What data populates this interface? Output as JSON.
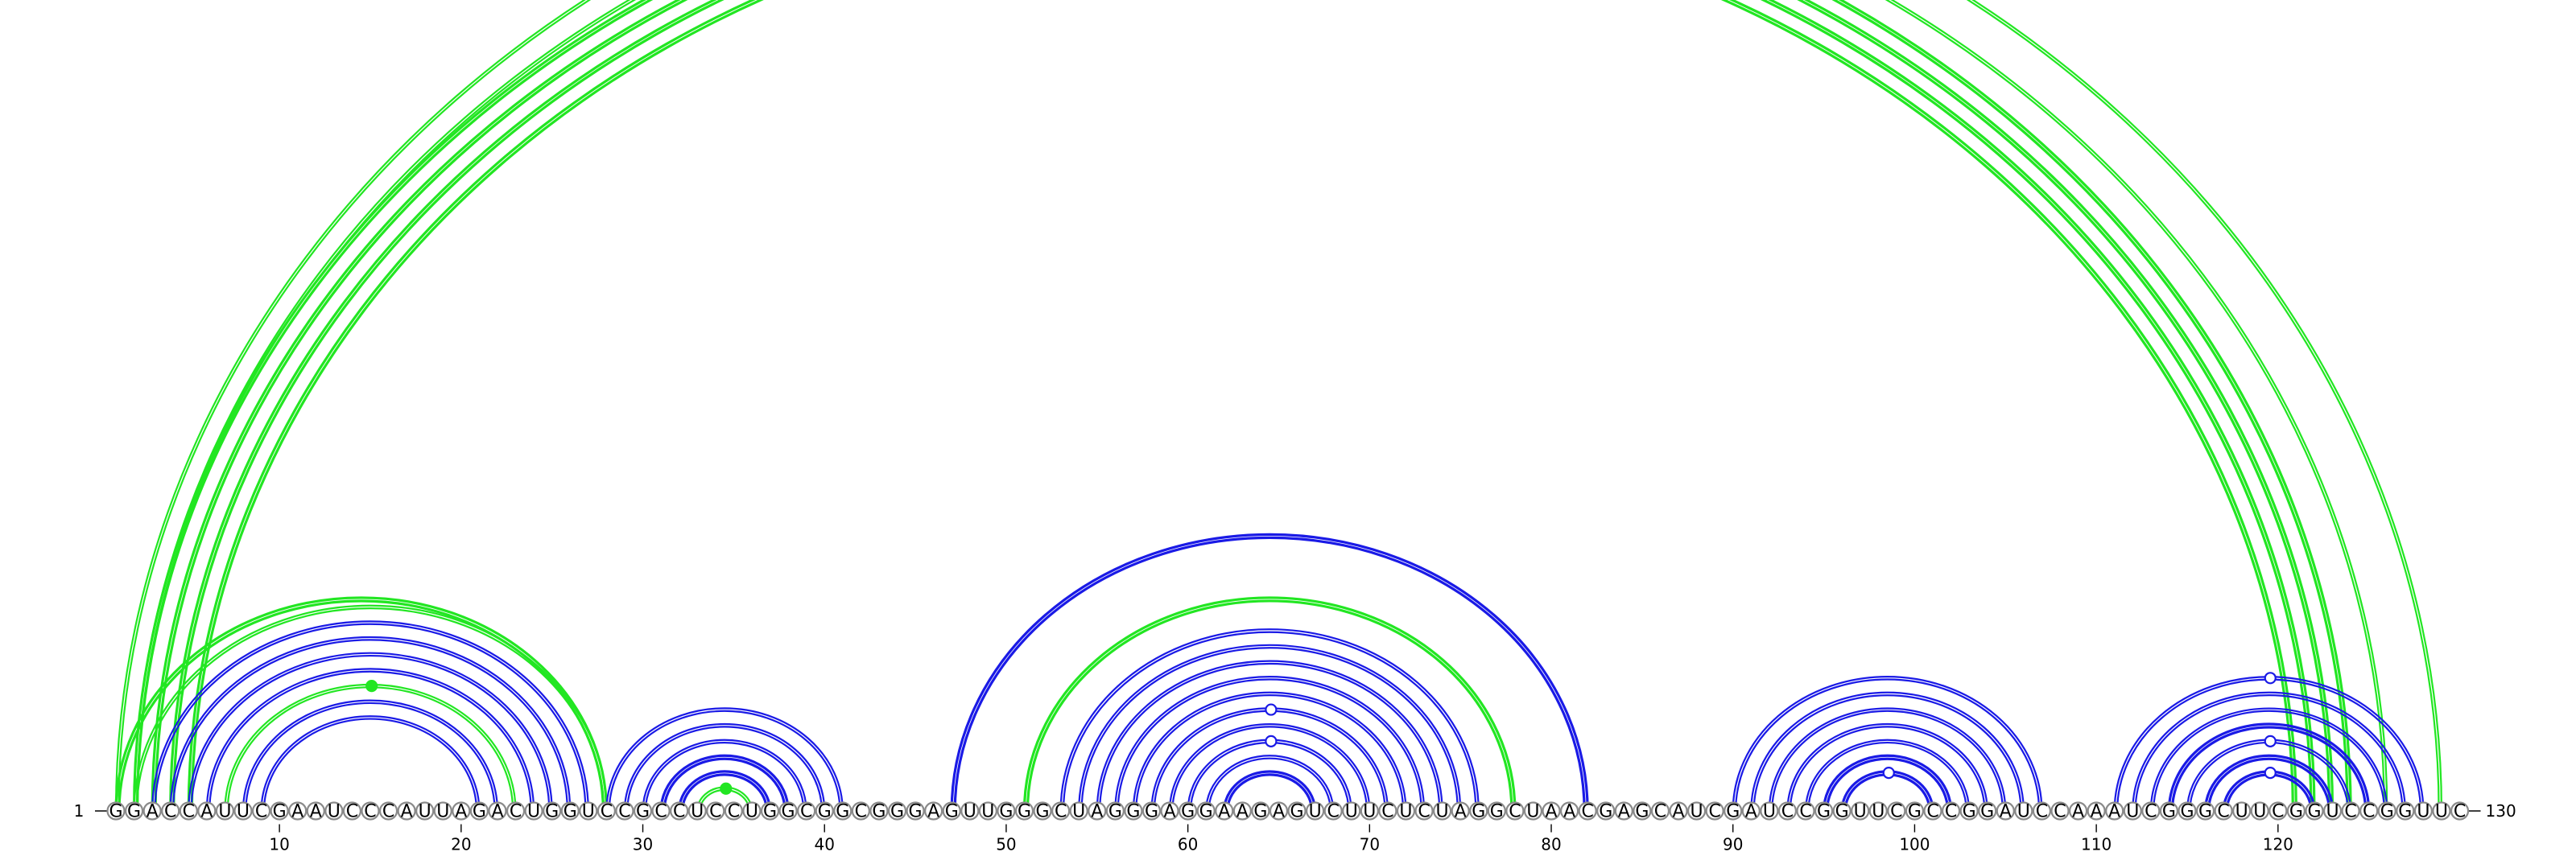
{
  "diagram": {
    "type": "rna-arc-diagram",
    "sequence": "GGACCAUUCGAAUCCCAUUAGACUGGUCCGCCUCCUGGCGGCGGGAGUUGGGCUAGGGAGGAAGAGUCUUCUCUAGGCUAACGAGCAUCGAUCCGGUUCGCCGGAUCCAAAUCGGGCUUCGGUCCGGUUC",
    "start_label": "1",
    "end_label": "130",
    "ticks": [
      10,
      20,
      30,
      40,
      50,
      60,
      70,
      80,
      90,
      100,
      110,
      120
    ],
    "colors": {
      "green": "#22e622",
      "blue": "#1a1ae6",
      "grey": "#8a8a8a"
    },
    "arcs": [
      {
        "i": 1,
        "j": 129,
        "color": "green",
        "style": "thin-double"
      },
      {
        "i": 2,
        "j": 124,
        "color": "green",
        "style": "thick-double"
      },
      {
        "i": 2,
        "j": 126,
        "color": "green",
        "style": "thin-double"
      },
      {
        "i": 3,
        "j": 123,
        "color": "green",
        "style": "thick-double"
      },
      {
        "i": 4,
        "j": 122,
        "color": "green",
        "style": "thick-double"
      },
      {
        "i": 5,
        "j": 121,
        "color": "green",
        "style": "thick-double"
      },
      {
        "i": 1,
        "j": 28,
        "color": "green",
        "style": "thick-double"
      },
      {
        "i": 2,
        "j": 28,
        "color": "green",
        "style": "thin-double"
      },
      {
        "i": 3,
        "j": 27,
        "color": "blue",
        "style": "thin-double"
      },
      {
        "i": 4,
        "j": 26,
        "color": "blue",
        "style": "thin-double"
      },
      {
        "i": 5,
        "j": 25,
        "color": "blue",
        "style": "thin-double"
      },
      {
        "i": 6,
        "j": 24,
        "color": "blue",
        "style": "thin-double"
      },
      {
        "i": 7,
        "j": 23,
        "color": "green",
        "style": "thin-double"
      },
      {
        "i": 8,
        "j": 22,
        "color": "blue",
        "style": "thin-double"
      },
      {
        "i": 9,
        "j": 21,
        "color": "blue",
        "style": "thin-double"
      },
      {
        "i": 28,
        "j": 41,
        "color": "blue",
        "style": "thin-double"
      },
      {
        "i": 29,
        "j": 40,
        "color": "blue",
        "style": "thin-double"
      },
      {
        "i": 30,
        "j": 39,
        "color": "blue",
        "style": "thin-double"
      },
      {
        "i": 31,
        "j": 38,
        "color": "blue",
        "style": "thick-double"
      },
      {
        "i": 32,
        "j": 37,
        "color": "blue",
        "style": "thick-double"
      },
      {
        "i": 33,
        "j": 36,
        "color": "green",
        "style": "thin-double"
      },
      {
        "i": 47,
        "j": 82,
        "color": "blue",
        "style": "thick-double"
      },
      {
        "i": 51,
        "j": 78,
        "color": "green",
        "style": "thick-double"
      },
      {
        "i": 53,
        "j": 76,
        "color": "blue",
        "style": "thin-double"
      },
      {
        "i": 54,
        "j": 75,
        "color": "blue",
        "style": "thin-double"
      },
      {
        "i": 55,
        "j": 74,
        "color": "blue",
        "style": "thin-double"
      },
      {
        "i": 56,
        "j": 73,
        "color": "blue",
        "style": "thin-double"
      },
      {
        "i": 57,
        "j": 72,
        "color": "blue",
        "style": "thin-double"
      },
      {
        "i": 58,
        "j": 71,
        "color": "blue",
        "style": "thin-double"
      },
      {
        "i": 59,
        "j": 70,
        "color": "blue",
        "style": "thin-double"
      },
      {
        "i": 60,
        "j": 69,
        "color": "blue",
        "style": "thin-double"
      },
      {
        "i": 61,
        "j": 68,
        "color": "blue",
        "style": "thin-double"
      },
      {
        "i": 62,
        "j": 67,
        "color": "blue",
        "style": "thick-double"
      },
      {
        "i": 90,
        "j": 107,
        "color": "blue",
        "style": "thin-double"
      },
      {
        "i": 91,
        "j": 106,
        "color": "blue",
        "style": "thin-double"
      },
      {
        "i": 92,
        "j": 105,
        "color": "blue",
        "style": "thin-double"
      },
      {
        "i": 93,
        "j": 104,
        "color": "blue",
        "style": "thin-double"
      },
      {
        "i": 94,
        "j": 103,
        "color": "blue",
        "style": "thin-double"
      },
      {
        "i": 95,
        "j": 102,
        "color": "blue",
        "style": "thick-double"
      },
      {
        "i": 96,
        "j": 101,
        "color": "blue",
        "style": "thick-double"
      },
      {
        "i": 111,
        "j": 128,
        "color": "blue",
        "style": "thin-double"
      },
      {
        "i": 112,
        "j": 127,
        "color": "blue",
        "style": "thin-double"
      },
      {
        "i": 113,
        "j": 126,
        "color": "blue",
        "style": "thin-double"
      },
      {
        "i": 114,
        "j": 125,
        "color": "blue",
        "style": "thick-double"
      },
      {
        "i": 115,
        "j": 124,
        "color": "blue",
        "style": "thin-double"
      },
      {
        "i": 116,
        "j": 123,
        "color": "blue",
        "style": "thick-double"
      },
      {
        "i": 117,
        "j": 122,
        "color": "blue",
        "style": "thick-double"
      }
    ],
    "markers": [
      {
        "i": 1,
        "j": 129,
        "color": "green",
        "filled": false
      },
      {
        "i": 7,
        "j": 23,
        "color": "green",
        "filled": true
      },
      {
        "i": 33,
        "j": 36,
        "color": "green",
        "filled": true
      },
      {
        "i": 58,
        "j": 71,
        "color": "blue",
        "filled": false
      },
      {
        "i": 60,
        "j": 69,
        "color": "blue",
        "filled": false
      },
      {
        "i": 96,
        "j": 101,
        "color": "blue",
        "filled": false
      },
      {
        "i": 111,
        "j": 128,
        "color": "blue",
        "filled": false
      },
      {
        "i": 115,
        "j": 124,
        "color": "blue",
        "filled": false
      },
      {
        "i": 117,
        "j": 122,
        "color": "blue",
        "filled": false
      }
    ]
  }
}
